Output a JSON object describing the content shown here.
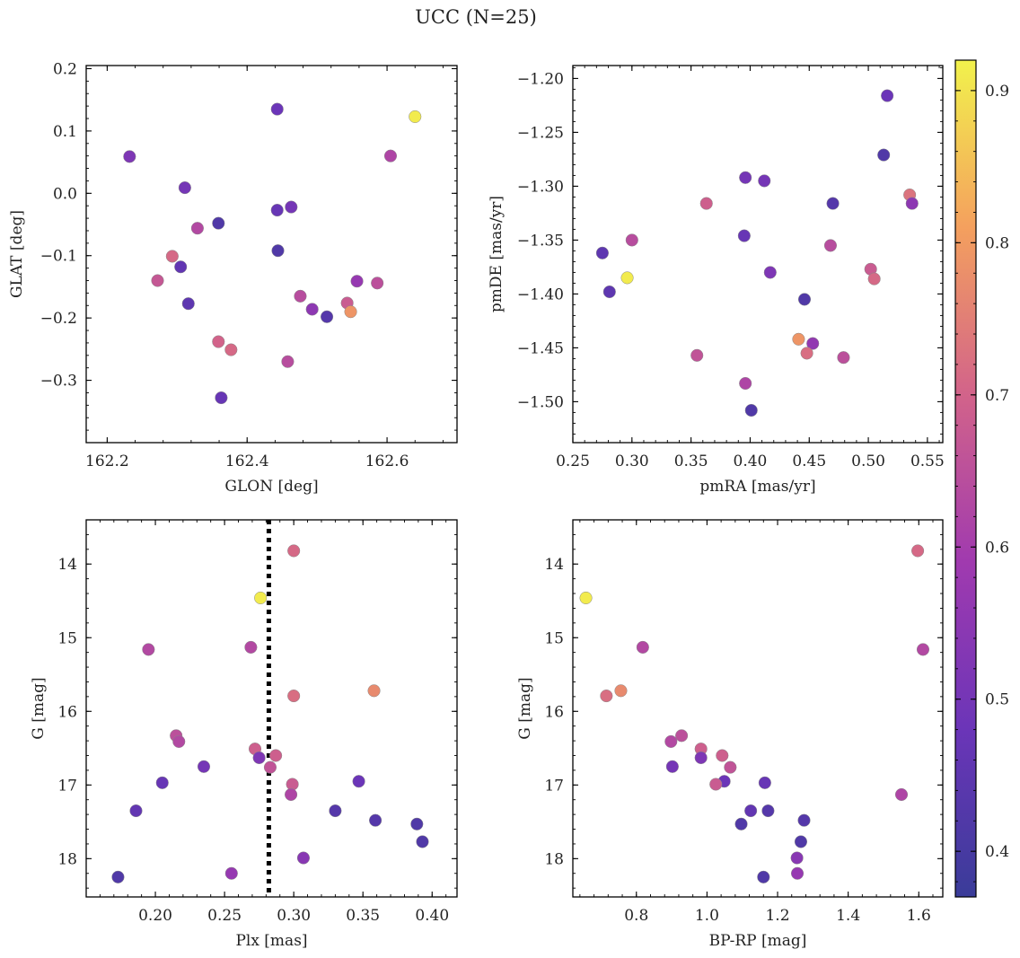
{
  "title": "UCC (N=25)",
  "colorbar": {
    "min": 0.37,
    "max": 0.92,
    "ticks": [
      0.4,
      0.5,
      0.6,
      0.7,
      0.8,
      0.9
    ],
    "tick_labels": [
      "0.4",
      "0.5",
      "0.6",
      "0.7",
      "0.8",
      "0.9"
    ],
    "colormap": "plasma"
  },
  "chart_data": [
    {
      "type": "scatter",
      "id": "glon_glat",
      "xlabel": "GLON [deg]",
      "ylabel": "GLAT [deg]",
      "xlim": [
        162.17,
        162.7
      ],
      "ylim": [
        -0.4,
        0.205
      ],
      "y_inverted": false,
      "xticks": [
        162.2,
        162.4,
        162.6
      ],
      "xtick_labels": [
        "162.2",
        "162.4",
        "162.6"
      ],
      "xminor": 0.04,
      "yticks": [
        -0.3,
        -0.2,
        -0.1,
        0.0,
        0.1,
        0.2
      ],
      "ytick_labels": [
        "−0.3",
        "−0.2",
        "−0.1",
        "0.0",
        "0.1",
        "0.2"
      ],
      "yminor": 0.02,
      "points": [
        {
          "x": 162.232,
          "y": 0.059,
          "c": 0.52
        },
        {
          "x": 162.443,
          "y": 0.135,
          "c": 0.48
        },
        {
          "x": 162.64,
          "y": 0.123,
          "c": 0.91
        },
        {
          "x": 162.605,
          "y": 0.06,
          "c": 0.62
        },
        {
          "x": 162.311,
          "y": 0.009,
          "c": 0.5
        },
        {
          "x": 162.443,
          "y": -0.027,
          "c": 0.47
        },
        {
          "x": 162.463,
          "y": -0.022,
          "c": 0.5
        },
        {
          "x": 162.359,
          "y": -0.048,
          "c": 0.42
        },
        {
          "x": 162.329,
          "y": -0.056,
          "c": 0.63
        },
        {
          "x": 162.444,
          "y": -0.092,
          "c": 0.42
        },
        {
          "x": 162.293,
          "y": -0.101,
          "c": 0.71
        },
        {
          "x": 162.305,
          "y": -0.118,
          "c": 0.46
        },
        {
          "x": 162.272,
          "y": -0.14,
          "c": 0.67
        },
        {
          "x": 162.557,
          "y": -0.141,
          "c": 0.57
        },
        {
          "x": 162.586,
          "y": -0.144,
          "c": 0.65
        },
        {
          "x": 162.476,
          "y": -0.165,
          "c": 0.64
        },
        {
          "x": 162.316,
          "y": -0.177,
          "c": 0.45
        },
        {
          "x": 162.543,
          "y": -0.176,
          "c": 0.68
        },
        {
          "x": 162.493,
          "y": -0.186,
          "c": 0.55
        },
        {
          "x": 162.548,
          "y": -0.19,
          "c": 0.79
        },
        {
          "x": 162.514,
          "y": -0.198,
          "c": 0.43
        },
        {
          "x": 162.359,
          "y": -0.238,
          "c": 0.7
        },
        {
          "x": 162.377,
          "y": -0.251,
          "c": 0.71
        },
        {
          "x": 162.458,
          "y": -0.27,
          "c": 0.64
        },
        {
          "x": 162.363,
          "y": -0.328,
          "c": 0.47
        }
      ]
    },
    {
      "type": "scatter",
      "id": "pmra_pmde",
      "xlabel": "pmRA [mas/yr]",
      "ylabel": "pmDE [mas/yr]",
      "xlim": [
        0.25,
        0.563
      ],
      "ylim": [
        -1.538,
        -1.188
      ],
      "y_inverted": false,
      "xticks": [
        0.25,
        0.3,
        0.35,
        0.4,
        0.45,
        0.5,
        0.55
      ],
      "xtick_labels": [
        "0.25",
        "0.30",
        "0.35",
        "0.40",
        "0.45",
        "0.50",
        "0.55"
      ],
      "xminor": 0.01,
      "yticks": [
        -1.5,
        -1.45,
        -1.4,
        -1.35,
        -1.3,
        -1.25,
        -1.2
      ],
      "ytick_labels": [
        "−1.50",
        "−1.45",
        "−1.40",
        "−1.35",
        "−1.30",
        "−1.25",
        "−1.20"
      ],
      "yminor": 0.01,
      "points": [
        {
          "x": 0.516,
          "y": -1.216,
          "c": 0.48
        },
        {
          "x": 0.513,
          "y": -1.271,
          "c": 0.42
        },
        {
          "x": 0.396,
          "y": -1.292,
          "c": 0.5
        },
        {
          "x": 0.412,
          "y": -1.295,
          "c": 0.5
        },
        {
          "x": 0.535,
          "y": -1.308,
          "c": 0.73
        },
        {
          "x": 0.537,
          "y": -1.316,
          "c": 0.55
        },
        {
          "x": 0.363,
          "y": -1.316,
          "c": 0.69
        },
        {
          "x": 0.47,
          "y": -1.316,
          "c": 0.43
        },
        {
          "x": 0.395,
          "y": -1.346,
          "c": 0.47
        },
        {
          "x": 0.3,
          "y": -1.35,
          "c": 0.64
        },
        {
          "x": 0.468,
          "y": -1.355,
          "c": 0.64
        },
        {
          "x": 0.275,
          "y": -1.362,
          "c": 0.45
        },
        {
          "x": 0.502,
          "y": -1.377,
          "c": 0.68
        },
        {
          "x": 0.417,
          "y": -1.38,
          "c": 0.52
        },
        {
          "x": 0.296,
          "y": -1.385,
          "c": 0.91
        },
        {
          "x": 0.505,
          "y": -1.386,
          "c": 0.71
        },
        {
          "x": 0.281,
          "y": -1.398,
          "c": 0.45
        },
        {
          "x": 0.446,
          "y": -1.405,
          "c": 0.42
        },
        {
          "x": 0.441,
          "y": -1.442,
          "c": 0.79
        },
        {
          "x": 0.453,
          "y": -1.446,
          "c": 0.56
        },
        {
          "x": 0.448,
          "y": -1.455,
          "c": 0.72
        },
        {
          "x": 0.355,
          "y": -1.457,
          "c": 0.66
        },
        {
          "x": 0.479,
          "y": -1.459,
          "c": 0.65
        },
        {
          "x": 0.396,
          "y": -1.483,
          "c": 0.62
        },
        {
          "x": 0.401,
          "y": -1.508,
          "c": 0.42
        }
      ]
    },
    {
      "type": "scatter",
      "id": "plx_g",
      "xlabel": "Plx [mas]",
      "ylabel": "G [mag]",
      "xlim": [
        0.15,
        0.418
      ],
      "ylim": [
        18.52,
        13.4
      ],
      "y_inverted": true,
      "xticks": [
        0.2,
        0.25,
        0.3,
        0.35,
        0.4
      ],
      "xtick_labels": [
        "0.20",
        "0.25",
        "0.30",
        "0.35",
        "0.40"
      ],
      "xminor": 0.01,
      "yticks": [
        14,
        15,
        16,
        17,
        18
      ],
      "ytick_labels": [
        "14",
        "15",
        "16",
        "17",
        "18"
      ],
      "yminor": 0.2,
      "vline": {
        "x": 0.282,
        "style": "dotted",
        "color": "#000000"
      },
      "points": [
        {
          "x": 0.3,
          "y": 13.82,
          "c": 0.71
        },
        {
          "x": 0.276,
          "y": 14.46,
          "c": 0.91
        },
        {
          "x": 0.195,
          "y": 15.16,
          "c": 0.63
        },
        {
          "x": 0.269,
          "y": 15.13,
          "c": 0.63
        },
        {
          "x": 0.358,
          "y": 15.72,
          "c": 0.77
        },
        {
          "x": 0.3,
          "y": 15.79,
          "c": 0.72
        },
        {
          "x": 0.215,
          "y": 16.33,
          "c": 0.65
        },
        {
          "x": 0.217,
          "y": 16.41,
          "c": 0.63
        },
        {
          "x": 0.272,
          "y": 16.51,
          "c": 0.69
        },
        {
          "x": 0.287,
          "y": 16.6,
          "c": 0.69
        },
        {
          "x": 0.275,
          "y": 16.63,
          "c": 0.52
        },
        {
          "x": 0.235,
          "y": 16.75,
          "c": 0.5
        },
        {
          "x": 0.283,
          "y": 16.76,
          "c": 0.66
        },
        {
          "x": 0.347,
          "y": 16.95,
          "c": 0.48
        },
        {
          "x": 0.205,
          "y": 16.97,
          "c": 0.47
        },
        {
          "x": 0.299,
          "y": 16.99,
          "c": 0.68
        },
        {
          "x": 0.298,
          "y": 17.13,
          "c": 0.62
        },
        {
          "x": 0.186,
          "y": 17.35,
          "c": 0.46
        },
        {
          "x": 0.33,
          "y": 17.35,
          "c": 0.43
        },
        {
          "x": 0.359,
          "y": 17.48,
          "c": 0.43
        },
        {
          "x": 0.389,
          "y": 17.53,
          "c": 0.42
        },
        {
          "x": 0.393,
          "y": 17.77,
          "c": 0.42
        },
        {
          "x": 0.307,
          "y": 17.99,
          "c": 0.54
        },
        {
          "x": 0.255,
          "y": 18.2,
          "c": 0.57
        },
        {
          "x": 0.173,
          "y": 18.25,
          "c": 0.42
        }
      ]
    },
    {
      "type": "scatter",
      "id": "bprp_g",
      "xlabel": "BP-RP [mag]",
      "ylabel": "G [mag]",
      "xlim": [
        0.62,
        1.668
      ],
      "ylim": [
        18.52,
        13.4
      ],
      "y_inverted": true,
      "xticks": [
        0.8,
        1.0,
        1.2,
        1.4,
        1.6
      ],
      "xtick_labels": [
        "0.8",
        "1.0",
        "1.2",
        "1.4",
        "1.6"
      ],
      "xminor": 0.04,
      "yticks": [
        14,
        15,
        16,
        17,
        18
      ],
      "ytick_labels": [
        "14",
        "15",
        "16",
        "17",
        "18"
      ],
      "yminor": 0.2,
      "points": [
        {
          "x": 1.597,
          "y": 13.82,
          "c": 0.71
        },
        {
          "x": 0.657,
          "y": 14.46,
          "c": 0.91
        },
        {
          "x": 0.818,
          "y": 15.13,
          "c": 0.63
        },
        {
          "x": 1.612,
          "y": 15.16,
          "c": 0.63
        },
        {
          "x": 0.756,
          "y": 15.72,
          "c": 0.77
        },
        {
          "x": 0.715,
          "y": 15.79,
          "c": 0.72
        },
        {
          "x": 0.928,
          "y": 16.33,
          "c": 0.65
        },
        {
          "x": 0.898,
          "y": 16.41,
          "c": 0.63
        },
        {
          "x": 0.983,
          "y": 16.51,
          "c": 0.69
        },
        {
          "x": 1.043,
          "y": 16.6,
          "c": 0.69
        },
        {
          "x": 0.983,
          "y": 16.63,
          "c": 0.52
        },
        {
          "x": 0.902,
          "y": 16.75,
          "c": 0.5
        },
        {
          "x": 1.066,
          "y": 16.76,
          "c": 0.66
        },
        {
          "x": 1.049,
          "y": 16.95,
          "c": 0.48
        },
        {
          "x": 1.164,
          "y": 16.97,
          "c": 0.47
        },
        {
          "x": 1.025,
          "y": 16.99,
          "c": 0.68
        },
        {
          "x": 1.551,
          "y": 17.13,
          "c": 0.62
        },
        {
          "x": 1.124,
          "y": 17.35,
          "c": 0.46
        },
        {
          "x": 1.173,
          "y": 17.35,
          "c": 0.43
        },
        {
          "x": 1.275,
          "y": 17.48,
          "c": 0.43
        },
        {
          "x": 1.097,
          "y": 17.53,
          "c": 0.42
        },
        {
          "x": 1.266,
          "y": 17.77,
          "c": 0.42
        },
        {
          "x": 1.255,
          "y": 17.99,
          "c": 0.54
        },
        {
          "x": 1.256,
          "y": 18.2,
          "c": 0.57
        },
        {
          "x": 1.16,
          "y": 18.25,
          "c": 0.42
        }
      ]
    }
  ]
}
